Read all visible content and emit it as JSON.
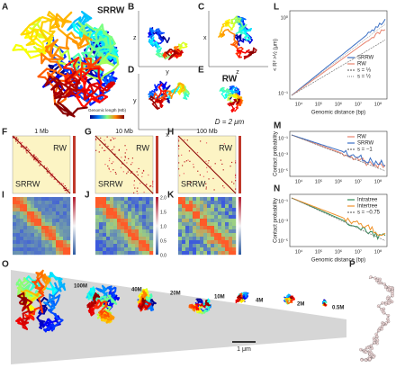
{
  "panel_letters": [
    "A",
    "B",
    "C",
    "D",
    "E",
    "F",
    "G",
    "H",
    "I",
    "J",
    "K",
    "L",
    "M",
    "N",
    "O",
    "P"
  ],
  "a": {
    "title": "SRRW",
    "colorbar_title": "Genomic length (Mb)"
  },
  "projections": [
    {
      "vertical": "z",
      "horizontal": "y"
    },
    {
      "vertical": "x",
      "horizontal": "z"
    },
    {
      "vertical": "y",
      "horizontal": "x"
    }
  ],
  "e": {
    "title": "RW",
    "diameter": "D = 2 μm"
  },
  "maps": [
    {
      "title": "1 Mb",
      "upper": "RW",
      "lower": "SRRW"
    },
    {
      "title": "10 Mb",
      "upper": "RW",
      "lower": "SRRW"
    },
    {
      "title": "100 Mb",
      "upper": "RW",
      "lower": "SRRW"
    }
  ],
  "map_colorbar_ticks": [
    "2.0",
    "1.5",
    "1.0",
    "0.5",
    "0.0"
  ],
  "plots": [
    {
      "y_label": "< R² >½ (μm)",
      "x_label": "Genomic distance (bp)",
      "x_ticks": [
        "10⁴",
        "10⁵",
        "10⁶",
        "10⁷",
        "10⁸"
      ],
      "y_ticks": [
        "10⁰",
        "10⁻¹"
      ],
      "legend": [
        "SRRW",
        "RW",
        "s = ⅓",
        "s = ½"
      ]
    },
    {
      "y_label": "Contact probability",
      "x_label": "Genomic distance (bp)",
      "x_ticks": [
        "10⁴",
        "10⁵",
        "10⁶",
        "10⁷",
        "10⁸"
      ],
      "y_ticks": [
        "10⁻¹",
        "10⁻³",
        "10⁻⁵"
      ],
      "legend": [
        "RW",
        "SRRW",
        "s = −1"
      ]
    },
    {
      "y_label": "Contact probability",
      "x_label": "Genomic distance (bp)",
      "x_ticks": [
        "10⁴",
        "10⁵",
        "10⁶",
        "10⁷",
        "10⁸"
      ],
      "y_ticks": [
        "10⁻¹",
        "10⁻³",
        "10⁻⁵"
      ],
      "legend": [
        "Intratree",
        "Intertree",
        "s = −0.75"
      ]
    }
  ],
  "o": {
    "sizes": [
      "100M",
      "40M",
      "20M",
      "10M",
      "4M",
      "2M",
      "0.5M"
    ],
    "scale": "1 μm"
  }
}
